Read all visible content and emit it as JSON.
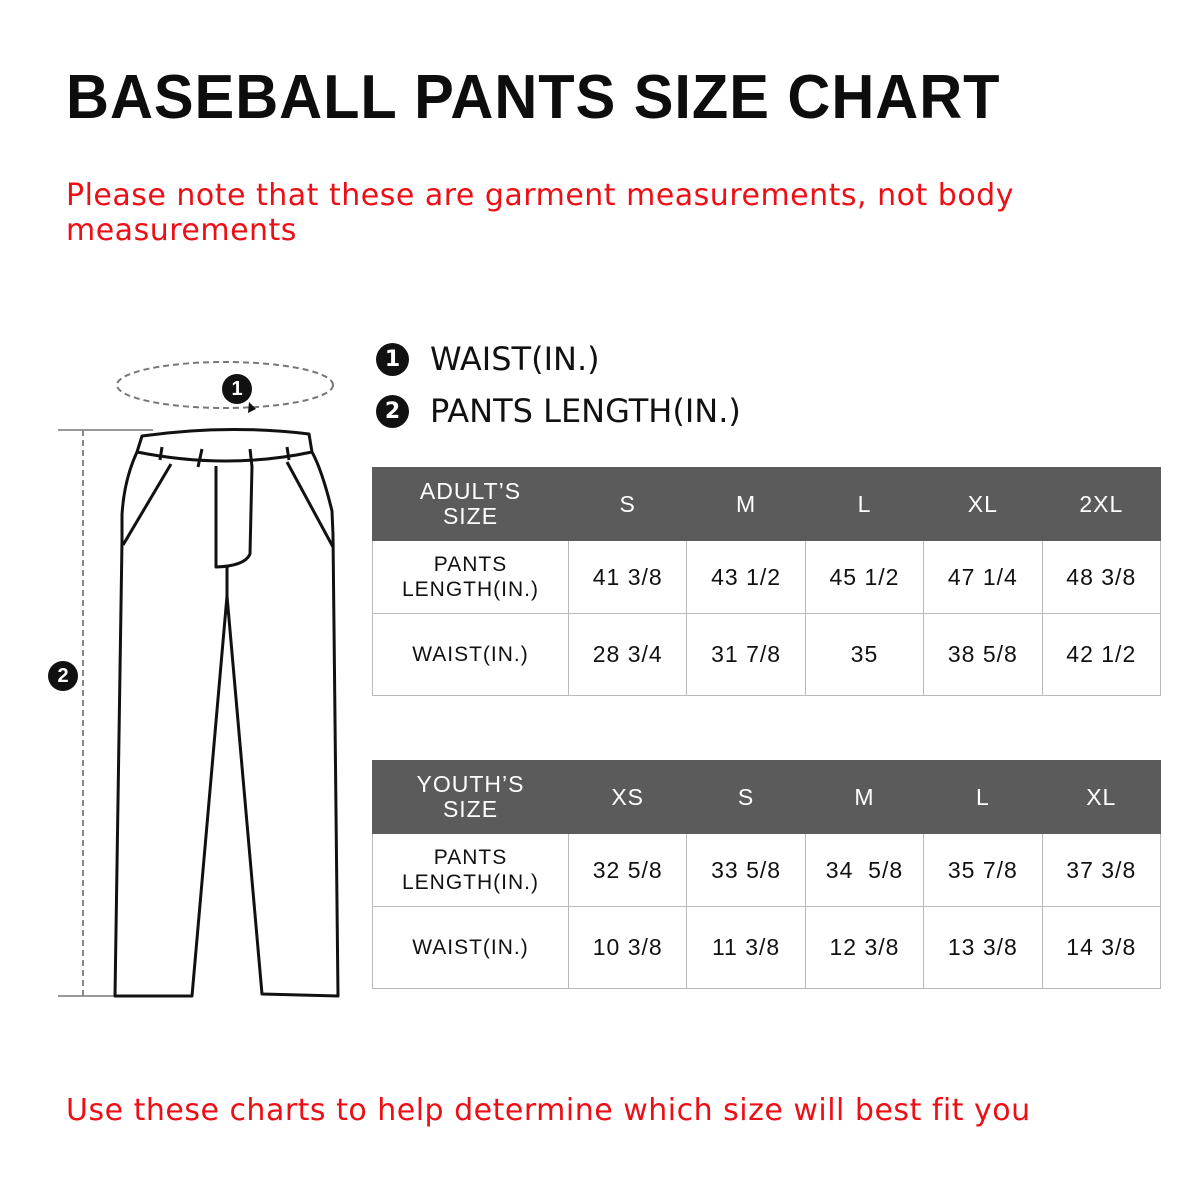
{
  "title": "BASEBALL PANTS SIZE CHART",
  "note": "Please note that these are garment measurements, not body measurements",
  "note_lines": [
    "Please note that these are garment measurements, not body",
    "measurements"
  ],
  "legend": [
    {
      "number": "1",
      "label": "WAIST(IN.)"
    },
    {
      "number": "2",
      "label": "PANTS LENGTH(IN.)"
    }
  ],
  "adult_table": {
    "header_line1": "ADULT’S",
    "header_line2": "SIZE",
    "sizes": [
      "S",
      "M",
      "L",
      "XL",
      "2XL"
    ],
    "rows": [
      {
        "label_line1": "PANTS",
        "label_line2": "LENGTH(IN.)",
        "values": [
          "41 3/8",
          "43 1/2",
          "45 1/2",
          "47 1/4",
          "48 3/8"
        ]
      },
      {
        "label": "WAIST(IN.)",
        "values": [
          "28 3/4",
          "31 7/8",
          "35",
          "38 5/8",
          "42 1/2"
        ]
      }
    ]
  },
  "youth_table": {
    "header_line1": "YOUTH’S",
    "header_line2": "SIZE",
    "sizes": [
      "XS",
      "S",
      "M",
      "L",
      "XL"
    ],
    "rows": [
      {
        "label_line1": "PANTS",
        "label_line2": "LENGTH(IN.)",
        "values": [
          "32 5/8",
          "33 5/8",
          "34  5/8",
          "35 7/8",
          "37 3/8"
        ]
      },
      {
        "label": "WAIST(IN.)",
        "values": [
          "10 3/8",
          "11 3/8",
          "12 3/8",
          "13 3/8",
          "14 3/8"
        ]
      }
    ]
  },
  "bottom_note": "Use these charts to help determine which size will best fit you",
  "colors": {
    "title": "#0d0d0d",
    "note_red": "#ec0f16",
    "table_header_bg": "#5b5b5b",
    "table_border": "#b9b9b9"
  }
}
